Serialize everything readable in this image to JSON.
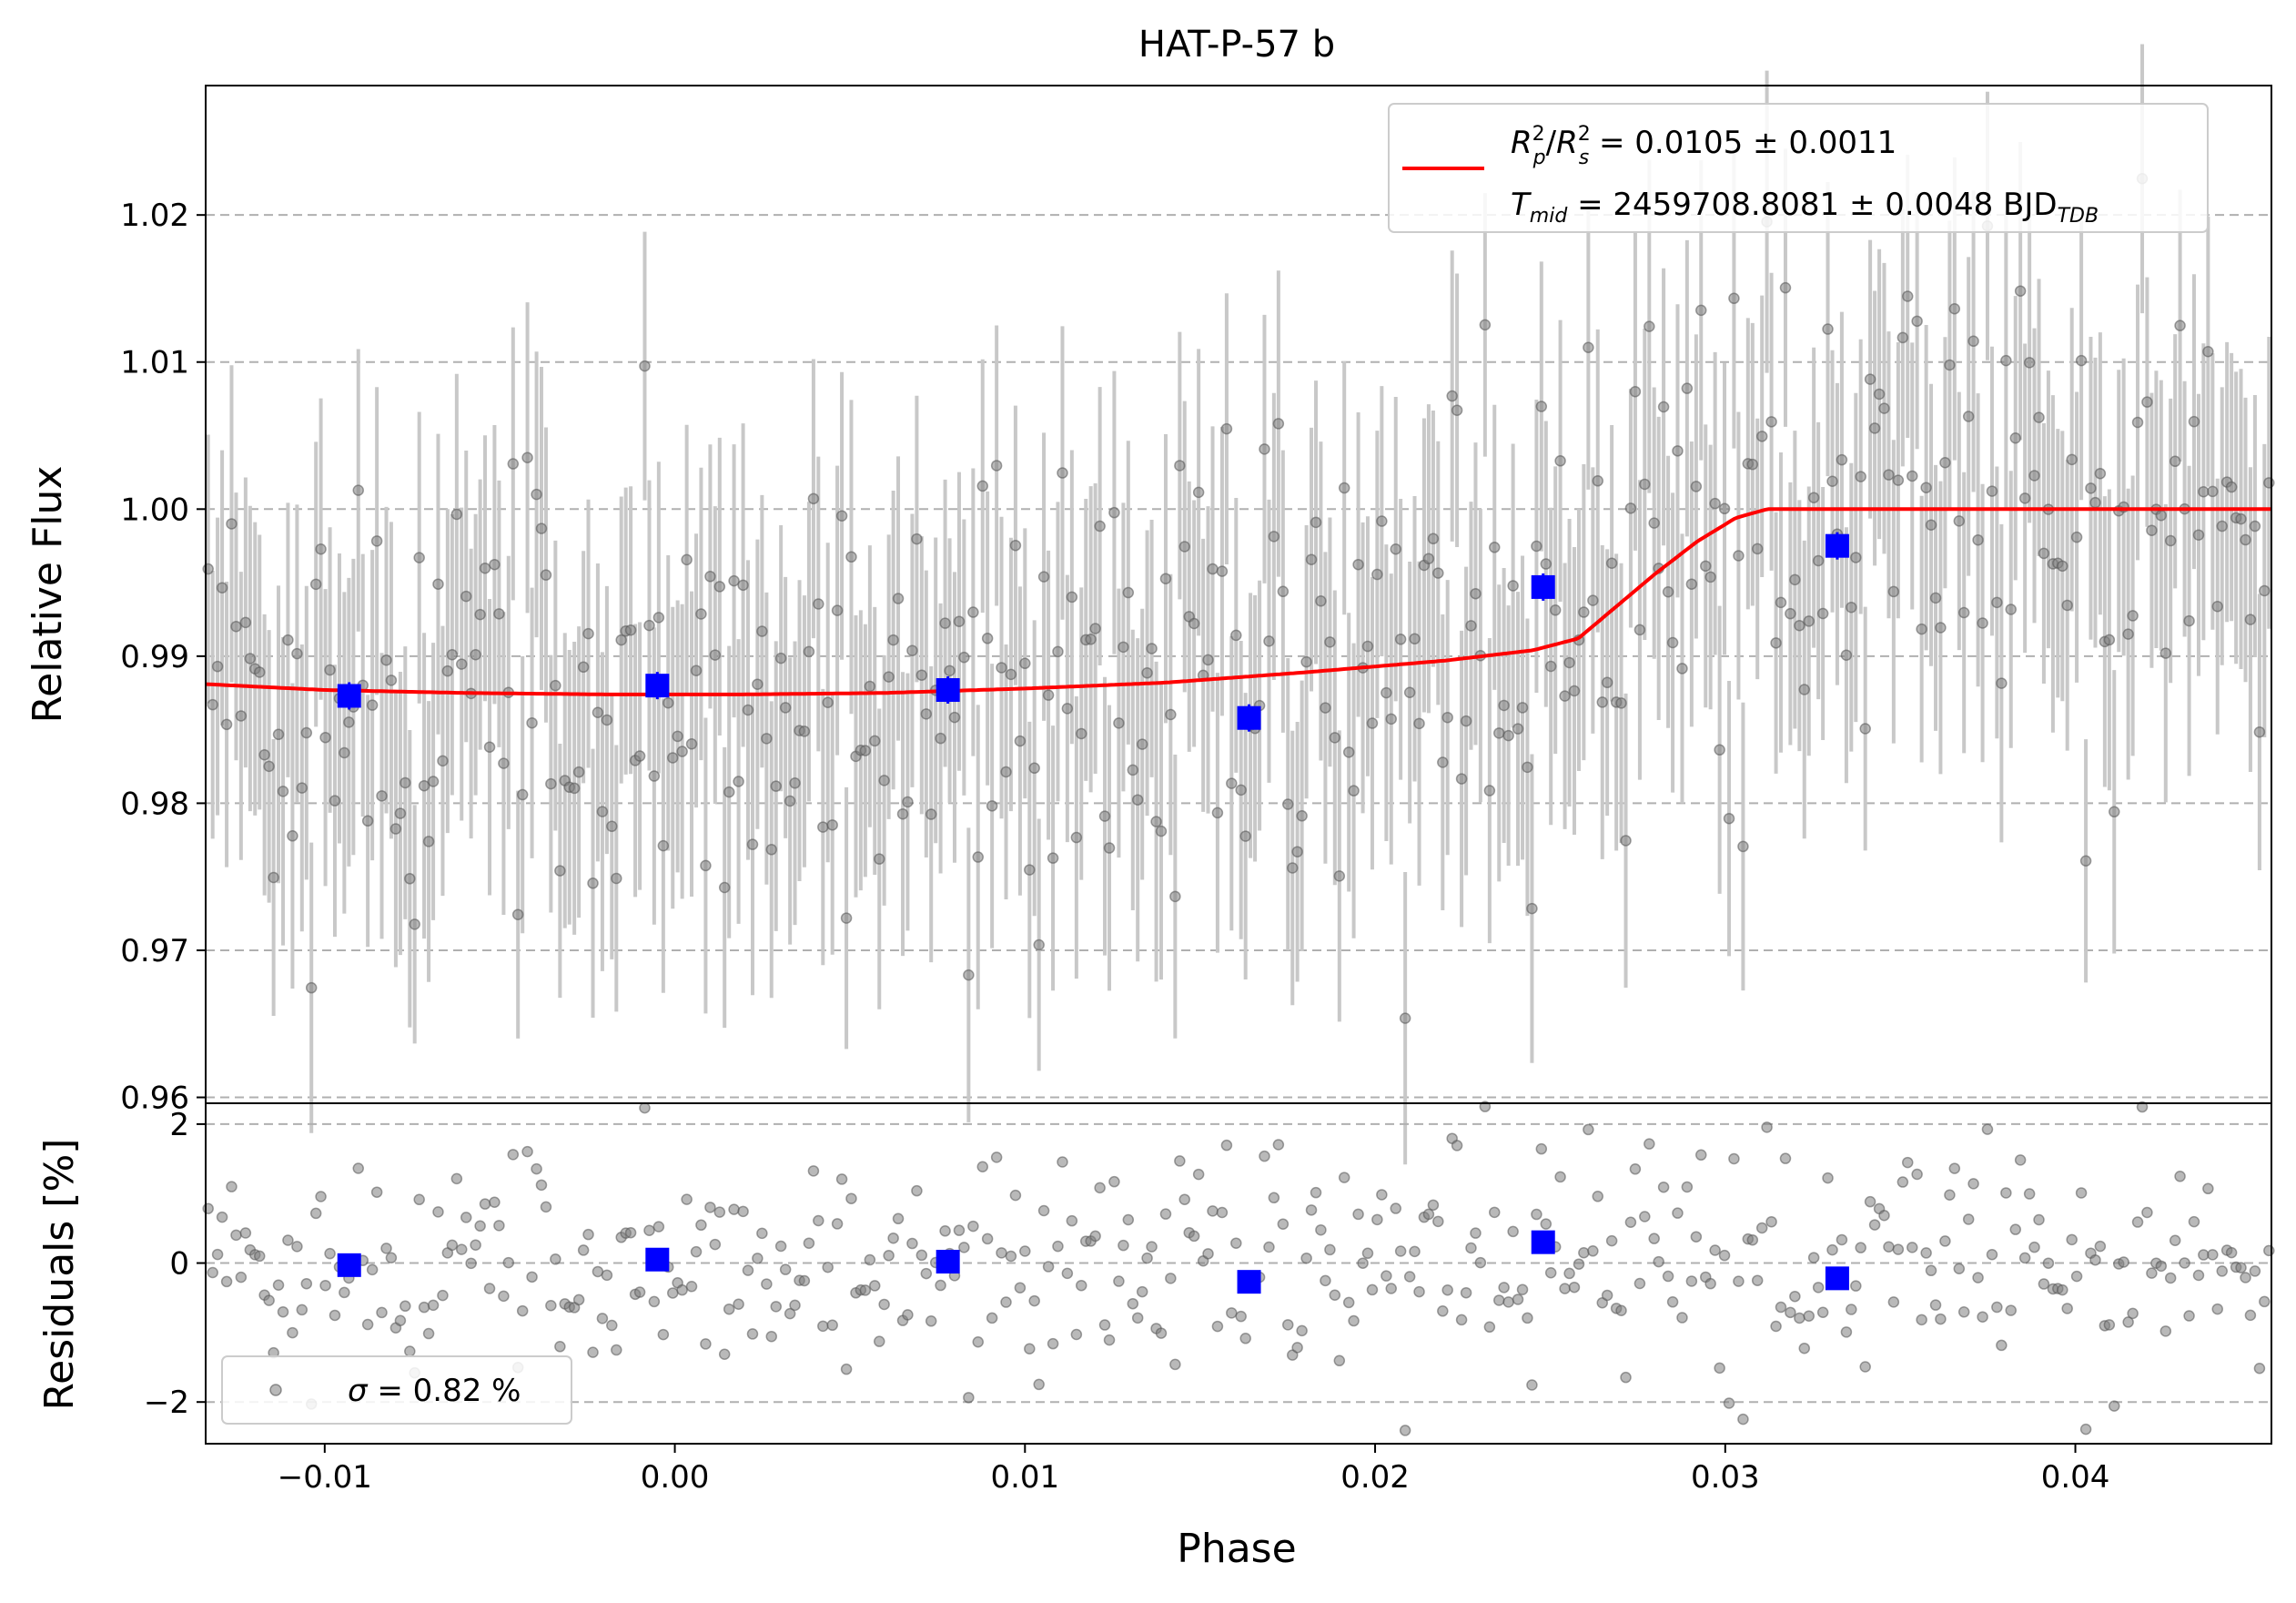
{
  "chart_data": [
    {
      "type": "scatter",
      "title": "HAT-P-57 b",
      "xlabel": "",
      "ylabel": "Relative Flux",
      "xlim": [
        -0.0134,
        0.0456
      ],
      "ylim": [
        0.9596,
        1.0288
      ],
      "yticks": [
        0.96,
        0.97,
        0.98,
        0.99,
        1.0,
        1.01,
        1.02
      ],
      "ytick_labels": [
        "0.96",
        "0.97",
        "0.98",
        "0.99",
        "1.00",
        "1.01",
        "1.02"
      ],
      "grid": "horizontal dashed",
      "legend": {
        "placement": "top-right",
        "lines": [
          {
            "prefix_italic": "R",
            "prefix_sup": "2",
            "prefix_sub": "p",
            "mid": "/",
            "mid_italic": "R",
            "mid_sup": "2",
            "mid_sub": "s",
            "text": " = 0.0105 ± 0.0011"
          },
          {
            "italic": "T",
            "sub": "mid",
            "text": " = 2459708.8081 ± 0.0048 BJD",
            "tail_sub": "TDB"
          }
        ]
      },
      "model": {
        "name": "",
        "color": "#ff0000",
        "x": [
          -0.0134,
          -0.01,
          -0.006,
          -0.002,
          0.002,
          0.006,
          0.01,
          0.014,
          0.018,
          0.022,
          0.0245,
          0.0258,
          0.0268,
          0.028,
          0.0292,
          0.0303,
          0.0312,
          0.0456
        ],
        "y": [
          0.9881,
          0.9877,
          0.9875,
          0.9874,
          0.9874,
          0.9875,
          0.9878,
          0.9882,
          0.9889,
          0.9897,
          0.9904,
          0.9912,
          0.9932,
          0.9956,
          0.9978,
          0.9994,
          1.0,
          1.0
        ]
      },
      "binned": {
        "color": "#0000ff",
        "x": [
          -0.0093,
          -0.0005,
          0.0078,
          0.0164,
          0.0248,
          0.0332
        ],
        "y": [
          0.9873,
          0.988,
          0.9877,
          0.9858,
          0.9947,
          0.9975
        ]
      },
      "raw": {
        "color": "#808080",
        "errorbar_color": "#c8c8c8",
        "x": [],
        "y": []
      }
    },
    {
      "type": "scatter",
      "title": "",
      "xlabel": "Phase",
      "ylabel": "Residuals [%]",
      "xlim": [
        -0.0134,
        0.0456
      ],
      "ylim": [
        -2.6,
        2.3
      ],
      "yticks": [
        2,
        0,
        -2
      ],
      "ytick_labels": [
        "2",
        "0",
        "−2"
      ],
      "xticks": [
        -0.01,
        0.0,
        0.01,
        0.02,
        0.03,
        0.04
      ],
      "xtick_labels": [
        "−0.01",
        "0.00",
        "0.01",
        "0.02",
        "0.03",
        "0.04"
      ],
      "grid": "horizontal dashed",
      "legend": {
        "placement": "bottom-left",
        "label_italic": "σ",
        "label_text": " = 0.82 %"
      },
      "binned": {
        "color": "#0000ff",
        "x": [
          -0.0093,
          -0.0005,
          0.0078,
          0.0164,
          0.0248,
          0.0332
        ],
        "y": [
          -0.03,
          0.05,
          0.02,
          -0.27,
          0.3,
          -0.22
        ]
      },
      "raw": {
        "color": "#808080",
        "x": [],
        "y": []
      }
    }
  ]
}
